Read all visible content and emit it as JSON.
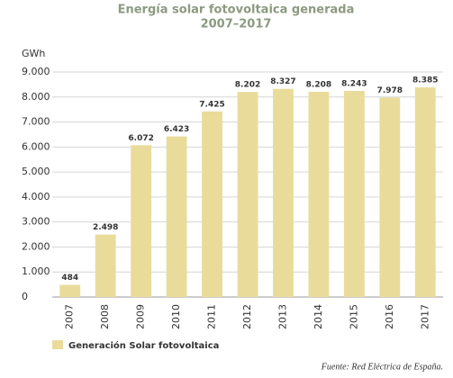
{
  "chart_data": {
    "type": "bar",
    "title": "Energía solar fotovoltaica generada",
    "subtitle": "2007–2017",
    "y_label": "GWh",
    "categories": [
      "2007",
      "2008",
      "2009",
      "2010",
      "2011",
      "2012",
      "2013",
      "2014",
      "2015",
      "2016",
      "2017"
    ],
    "series": [
      {
        "name": "Generación Solar fotovoltaica",
        "color": "#e9dc9b",
        "values": [
          484,
          2498,
          6072,
          6423,
          7425,
          8202,
          8327,
          8208,
          8243,
          7978,
          8385
        ],
        "value_labels": [
          "484",
          "2.498",
          "6.072",
          "6.423",
          "7.425",
          "8.202",
          "8.327",
          "8.208",
          "8.243",
          "7.978",
          "8.385"
        ]
      }
    ],
    "ylim": [
      0,
      9000
    ],
    "yticks": [
      0,
      {
        "value": 1000,
        "label": "1.000"
      },
      {
        "value": 2000,
        "label": "2.000"
      },
      {
        "value": 3000,
        "label": "3.000"
      },
      {
        "value": 4000,
        "label": "4.000"
      },
      {
        "value": 5000,
        "label": "5.000"
      },
      {
        "value": 6000,
        "label": "6.000"
      },
      {
        "value": 7000,
        "label": "7.000"
      },
      {
        "value": 8000,
        "label": "8.000"
      },
      {
        "value": 9000,
        "label": "9.000"
      }
    ],
    "grid": true,
    "source": "Fuente: Red Eléctrica de España."
  }
}
